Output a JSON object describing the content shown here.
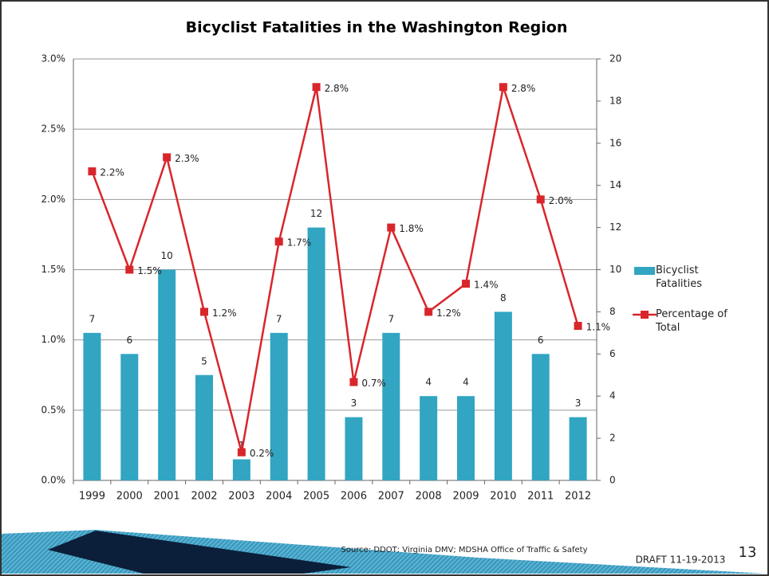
{
  "chart_data": {
    "type": "bar",
    "title": "Bicyclist Fatalities in the Washington Region",
    "categories": [
      "1999",
      "2000",
      "2001",
      "2002",
      "2003",
      "2004",
      "2005",
      "2006",
      "2007",
      "2008",
      "2009",
      "2010",
      "2011",
      "2012"
    ],
    "series": [
      {
        "name": "Bicyclist Fatalities",
        "type": "bar",
        "axis": "y2",
        "color": "#31a5c2",
        "values": [
          7,
          6,
          10,
          5,
          1,
          7,
          12,
          3,
          7,
          4,
          4,
          8,
          6,
          3
        ]
      },
      {
        "name": "Percentage of Total",
        "type": "line",
        "axis": "y",
        "color": "#d9262b",
        "values": [
          2.2,
          1.5,
          2.3,
          1.2,
          0.2,
          1.7,
          2.8,
          0.7,
          1.8,
          1.2,
          1.4,
          2.8,
          2.0,
          1.1
        ],
        "value_labels": [
          "2.2%",
          "1.5%",
          "2.3%",
          "1.2%",
          "0.2%",
          "1.7%",
          "2.8%",
          "0.7%",
          "1.8%",
          "1.2%",
          "1.4%",
          "2.8%",
          "2.0%",
          "1.1%"
        ]
      }
    ],
    "ylim": [
      0,
      3
    ],
    "yticks": [
      {
        "value": 0,
        "label": "0.0%"
      },
      {
        "value": 0.5,
        "label": "0.5%"
      },
      {
        "value": 1,
        "label": "1.0%"
      },
      {
        "value": 1.5,
        "label": "1.5%"
      },
      {
        "value": 2,
        "label": "2.0%"
      },
      {
        "value": 2.5,
        "label": "2.5%"
      },
      {
        "value": 3,
        "label": "3.0%"
      }
    ],
    "y2lim": [
      0,
      20
    ],
    "y2ticks": [
      0,
      2,
      4,
      6,
      8,
      10,
      12,
      14,
      16,
      18,
      20
    ],
    "grid": true,
    "legend": "right"
  },
  "footer": {
    "source": "Source: DDOT; Virginia DMV;  MDSHA Office of Traffic & Safety",
    "draft": "DRAFT 11-19-2013",
    "page_number": "13"
  }
}
